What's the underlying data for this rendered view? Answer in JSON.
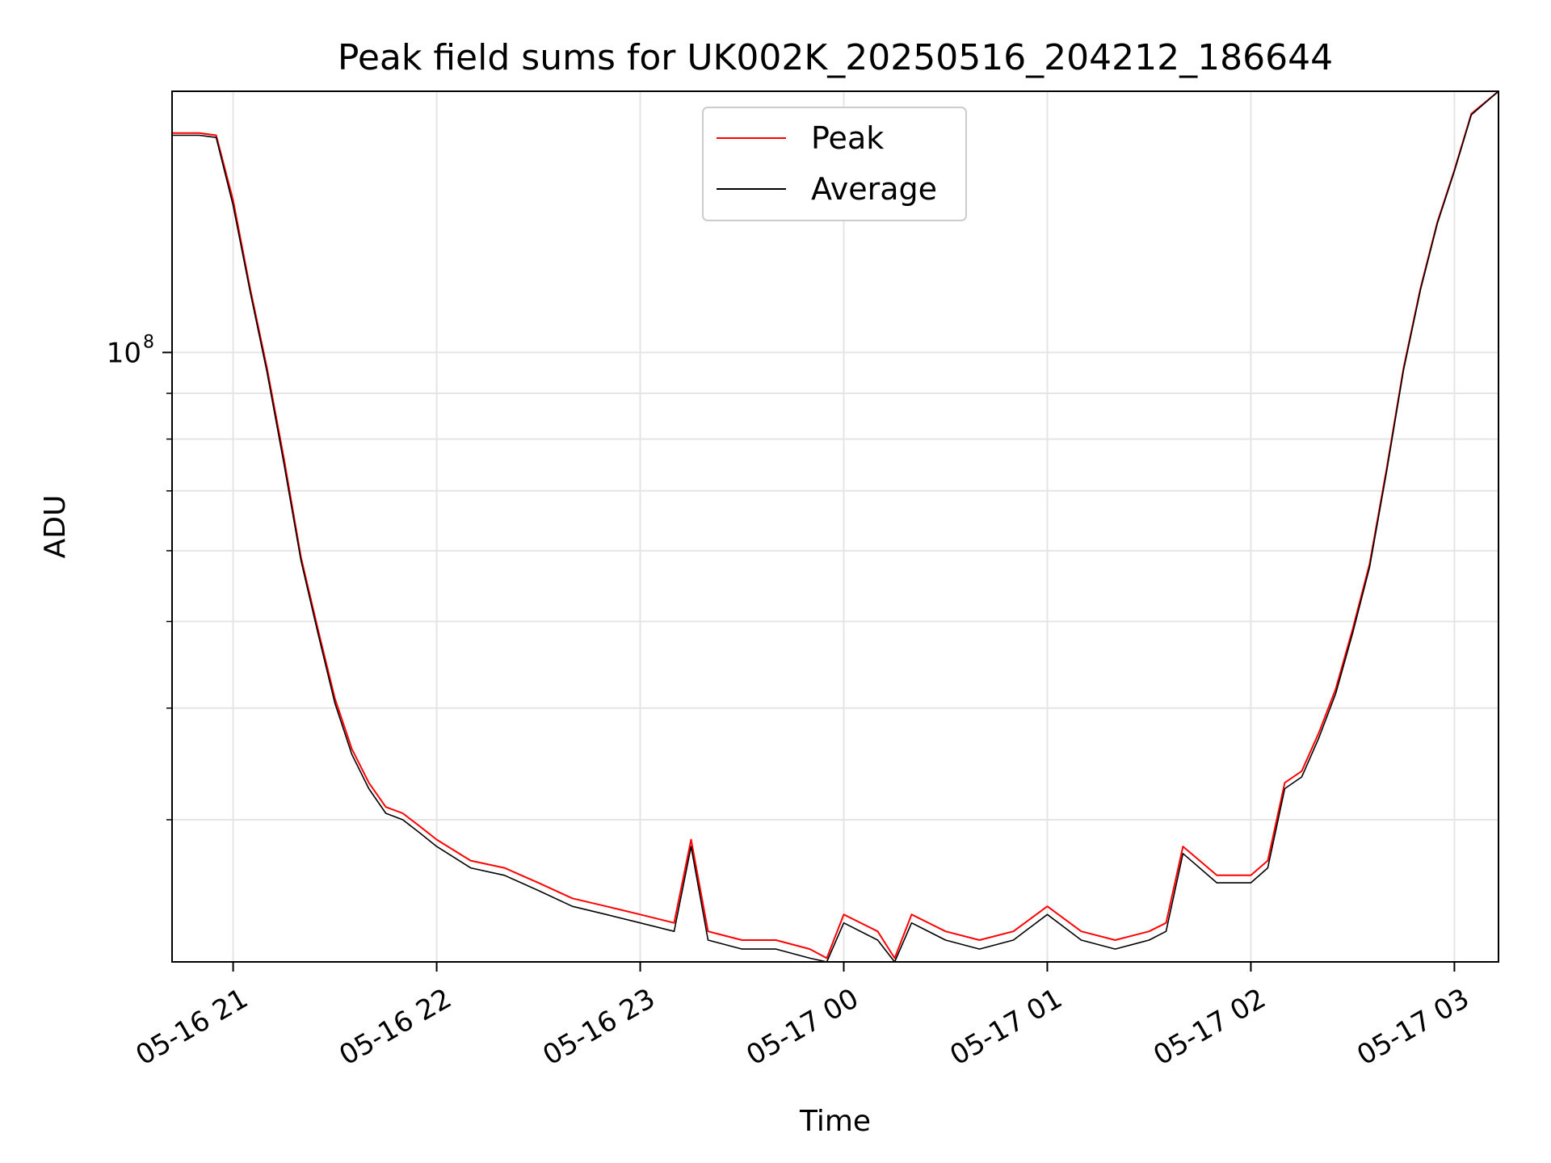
{
  "chart_data": {
    "type": "line",
    "title": "Peak field sums for UK002K_20250516_204212_186644",
    "xlabel": "Time",
    "ylabel": "ADU",
    "yscale": "log",
    "xlim": [
      "2025-05-16 20:42",
      "2025-05-17 03:13"
    ],
    "ylim": [
      20800000,
      196000000
    ],
    "x_ticks": [
      {
        "label": "05-16 21",
        "value": "2025-05-16 21:00"
      },
      {
        "label": "05-16 22",
        "value": "2025-05-16 22:00"
      },
      {
        "label": "05-16 23",
        "value": "2025-05-16 23:00"
      },
      {
        "label": "05-17 00",
        "value": "2025-05-17 00:00"
      },
      {
        "label": "05-17 01",
        "value": "2025-05-17 01:00"
      },
      {
        "label": "05-17 02",
        "value": "2025-05-17 02:00"
      },
      {
        "label": "05-17 03",
        "value": "2025-05-17 03:00"
      }
    ],
    "y_ticks": [
      {
        "base": "10",
        "exp": "8",
        "value": 100000000
      }
    ],
    "y_minor_ticks": [
      30000000,
      40000000,
      50000000,
      60000000,
      70000000,
      80000000,
      90000000
    ],
    "grid": true,
    "legend_position": "top-center",
    "x": [
      "2025-05-16 20:42",
      "2025-05-16 20:50",
      "2025-05-16 20:55",
      "2025-05-16 21:00",
      "2025-05-16 21:05",
      "2025-05-16 21:10",
      "2025-05-16 21:15",
      "2025-05-16 21:20",
      "2025-05-16 21:25",
      "2025-05-16 21:30",
      "2025-05-16 21:35",
      "2025-05-16 21:40",
      "2025-05-16 21:45",
      "2025-05-16 21:50",
      "2025-05-16 21:55",
      "2025-05-16 22:00",
      "2025-05-16 22:10",
      "2025-05-16 22:20",
      "2025-05-16 22:30",
      "2025-05-16 22:40",
      "2025-05-16 22:50",
      "2025-05-16 23:00",
      "2025-05-16 23:10",
      "2025-05-16 23:15",
      "2025-05-16 23:20",
      "2025-05-16 23:30",
      "2025-05-16 23:40",
      "2025-05-16 23:50",
      "2025-05-16 23:55",
      "2025-05-17 00:00",
      "2025-05-17 00:10",
      "2025-05-17 00:15",
      "2025-05-17 00:20",
      "2025-05-17 00:30",
      "2025-05-17 00:40",
      "2025-05-17 00:50",
      "2025-05-17 01:00",
      "2025-05-17 01:10",
      "2025-05-17 01:20",
      "2025-05-17 01:30",
      "2025-05-17 01:35",
      "2025-05-17 01:40",
      "2025-05-17 01:50",
      "2025-05-17 02:00",
      "2025-05-17 02:05",
      "2025-05-17 02:10",
      "2025-05-17 02:15",
      "2025-05-17 02:20",
      "2025-05-17 02:25",
      "2025-05-17 02:30",
      "2025-05-17 02:35",
      "2025-05-17 02:40",
      "2025-05-17 02:45",
      "2025-05-17 02:50",
      "2025-05-17 02:55",
      "2025-05-17 03:00",
      "2025-05-17 03:05",
      "2025-05-17 03:13"
    ],
    "series": [
      {
        "name": "Peak",
        "color": "#ff0000",
        "values": [
          176000000,
          176000000,
          175000000,
          148000000,
          118000000,
          96000000,
          76000000,
          59000000,
          49000000,
          41000000,
          36000000,
          33000000,
          31000000,
          30500000,
          29500000,
          28500000,
          27000000,
          26500000,
          25500000,
          24500000,
          24000000,
          23500000,
          23000000,
          28500000,
          22500000,
          22000000,
          22000000,
          21500000,
          21000000,
          23500000,
          22500000,
          21000000,
          23500000,
          22500000,
          22000000,
          22500000,
          24000000,
          22500000,
          22000000,
          22500000,
          23000000,
          28000000,
          26000000,
          26000000,
          27000000,
          33000000,
          34000000,
          37500000,
          42000000,
          49000000,
          58000000,
          74000000,
          96000000,
          118000000,
          140000000,
          160000000,
          185000000,
          196000000
        ]
      },
      {
        "name": "Average",
        "color": "#000000",
        "values": [
          175000000,
          175000000,
          174000000,
          146000000,
          117000000,
          95000000,
          75000000,
          58500000,
          48500000,
          40500000,
          35500000,
          32500000,
          30500000,
          30000000,
          29000000,
          28000000,
          26500000,
          26000000,
          25000000,
          24000000,
          23500000,
          23000000,
          22500000,
          28000000,
          22000000,
          21500000,
          21500000,
          21000000,
          20800000,
          23000000,
          22000000,
          20800000,
          23000000,
          22000000,
          21500000,
          22000000,
          23500000,
          22000000,
          21500000,
          22000000,
          22500000,
          27500000,
          25500000,
          25500000,
          26500000,
          32500000,
          33500000,
          37000000,
          41500000,
          48500000,
          57500000,
          73500000,
          95500000,
          117500000,
          139500000,
          159500000,
          184500000,
          196000000
        ]
      }
    ]
  }
}
